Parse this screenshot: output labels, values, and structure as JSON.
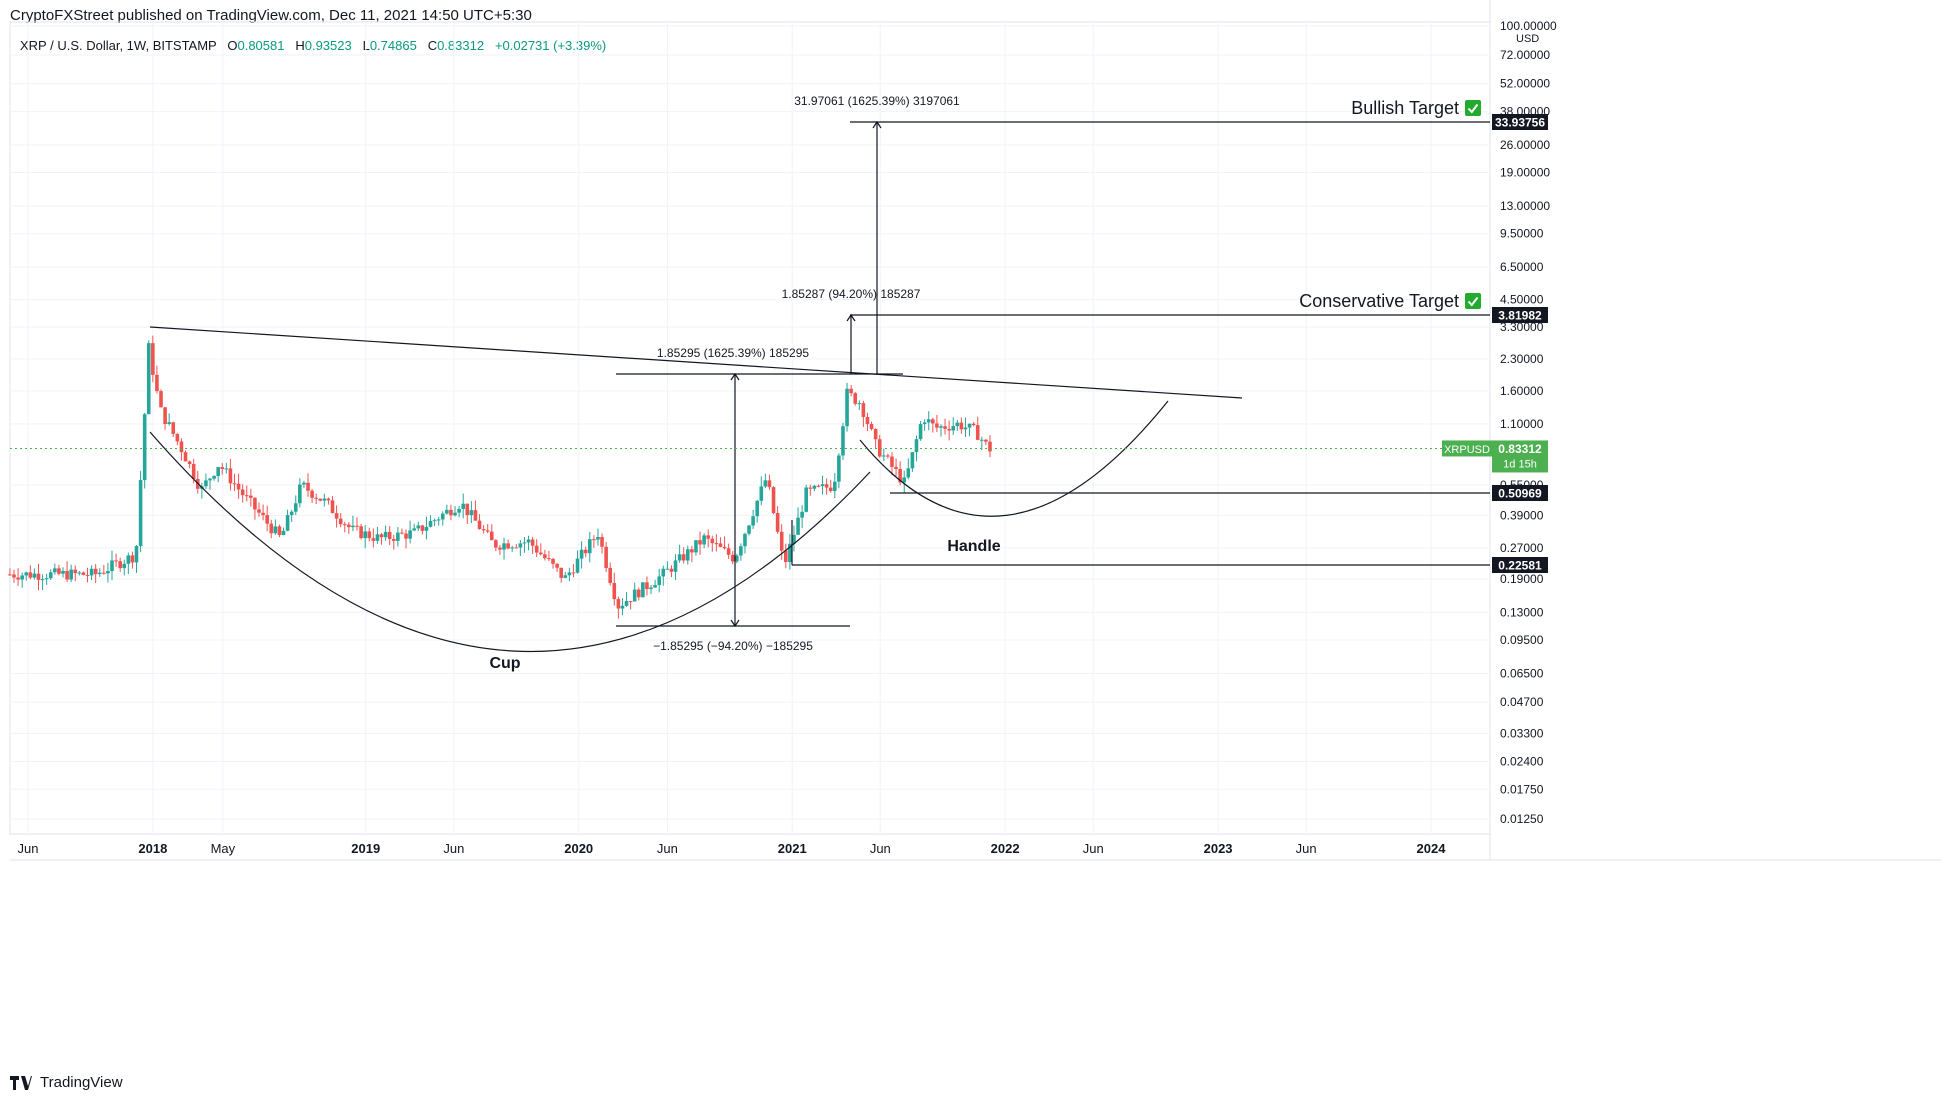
{
  "header": {
    "publisher": "CryptoFXStreet published on TradingView.com, Dec 11, 2021 14:50 UTC+5:30"
  },
  "legend": {
    "symbol": "XRP / U.S. Dollar, 1W, BITSTAMP",
    "ohlc": [
      {
        "k": "O",
        "v": "0.80581"
      },
      {
        "k": "H",
        "v": "0.93523"
      },
      {
        "k": "L",
        "v": "0.74865"
      },
      {
        "k": "C",
        "v": "0.83312"
      }
    ],
    "change": "+0.02731 (+3.39%)"
  },
  "footer": {
    "brand": "TradingView"
  },
  "colors": {
    "up": "#089981",
    "down": "#f23645",
    "up_candle": "#26a69a",
    "down_candle": "#ef5350",
    "line": "#131722",
    "price_tag": "#4caf50",
    "check": "#22ab2e"
  },
  "chart_data": {
    "type": "candlestick",
    "scale": "log",
    "currency": "USD",
    "y_axis_ticks": [
      "100.00000",
      "72.00000",
      "52.00000",
      "38.00000",
      "26.00000",
      "19.00000",
      "13.00000",
      "9.50000",
      "6.50000",
      "4.50000",
      "3.30000",
      "2.30000",
      "1.60000",
      "1.10000",
      "0.55000",
      "0.39000",
      "0.27000",
      "0.19000",
      "0.13000",
      "0.09500",
      "0.06500",
      "0.04700",
      "0.03300",
      "0.02400",
      "0.01750",
      "0.01250"
    ],
    "x_axis_ticks": [
      {
        "label": "Jun",
        "bold": false
      },
      {
        "label": "2018",
        "bold": true
      },
      {
        "label": "May",
        "bold": false
      },
      {
        "label": "2019",
        "bold": true
      },
      {
        "label": "Jun",
        "bold": false
      },
      {
        "label": "2020",
        "bold": true
      },
      {
        "label": "Jun",
        "bold": false
      },
      {
        "label": "2021",
        "bold": true
      },
      {
        "label": "Jun",
        "bold": false
      },
      {
        "label": "2022",
        "bold": true
      },
      {
        "label": "Jun",
        "bold": false
      },
      {
        "label": "2023",
        "bold": true
      },
      {
        "label": "Jun",
        "bold": false
      },
      {
        "label": "2024",
        "bold": true
      }
    ],
    "x_tick_dates": [
      "2017-06-01",
      "2018-01-01",
      "2018-05-01",
      "2019-01-01",
      "2019-06-01",
      "2020-01-01",
      "2020-06-01",
      "2021-01-01",
      "2021-06-01",
      "2022-01-01",
      "2022-06-01",
      "2023-01-01",
      "2023-06-01",
      "2024-01-01"
    ],
    "price_tags": [
      {
        "value": "33.93756",
        "price": 33.93756,
        "style": "dark"
      },
      {
        "value": "3.81982",
        "price": 3.81982,
        "style": "dark"
      },
      {
        "value": "0.50969",
        "price": 0.50969,
        "style": "dark"
      },
      {
        "value": "0.22581",
        "price": 0.22581,
        "style": "dark"
      }
    ],
    "current": {
      "symbol": "XRPUSD",
      "value": "0.83312",
      "countdown": "1d 15h",
      "price": 0.83312
    },
    "annotations": {
      "bullish_target": "Bullish Target",
      "conservative_target": "Conservative Target",
      "cup": "Cup",
      "handle": "Handle",
      "measure_top": "31.97061 (1625.39%) 3197061",
      "measure_mid": "1.85287 (94.20%) 185287",
      "measure_left": "1.85295 (1625.39%) 185295",
      "measure_bottom": "−1.85295 (−94.20%) −185295"
    },
    "anchors": [
      {
        "date": "2017-06-01",
        "price": 0.2
      },
      {
        "date": "2017-10-01",
        "price": 0.2
      },
      {
        "date": "2017-12-10",
        "price": 0.25
      },
      {
        "date": "2018-01-01",
        "price": 2.6
      },
      {
        "date": "2018-01-20",
        "price": 1.3
      },
      {
        "date": "2018-03-01",
        "price": 0.8
      },
      {
        "date": "2018-04-01",
        "price": 0.52
      },
      {
        "date": "2018-05-01",
        "price": 0.7
      },
      {
        "date": "2018-06-15",
        "price": 0.48
      },
      {
        "date": "2018-08-15",
        "price": 0.3
      },
      {
        "date": "2018-09-20",
        "price": 0.55
      },
      {
        "date": "2018-11-01",
        "price": 0.45
      },
      {
        "date": "2018-12-15",
        "price": 0.33
      },
      {
        "date": "2019-02-01",
        "price": 0.3
      },
      {
        "date": "2019-04-01",
        "price": 0.32
      },
      {
        "date": "2019-06-20",
        "price": 0.45
      },
      {
        "date": "2019-08-15",
        "price": 0.28
      },
      {
        "date": "2019-10-15",
        "price": 0.29
      },
      {
        "date": "2019-12-15",
        "price": 0.19
      },
      {
        "date": "2020-02-10",
        "price": 0.32
      },
      {
        "date": "2020-03-15",
        "price": 0.14
      },
      {
        "date": "2020-06-01",
        "price": 0.2
      },
      {
        "date": "2020-08-10",
        "price": 0.3
      },
      {
        "date": "2020-10-01",
        "price": 0.24
      },
      {
        "date": "2020-11-25",
        "price": 0.6
      },
      {
        "date": "2020-12-25",
        "price": 0.22
      },
      {
        "date": "2021-02-01",
        "price": 0.5
      },
      {
        "date": "2021-03-20",
        "price": 0.55
      },
      {
        "date": "2021-04-12",
        "price": 1.55
      },
      {
        "date": "2021-05-05",
        "price": 1.4
      },
      {
        "date": "2021-06-01",
        "price": 0.85
      },
      {
        "date": "2021-07-20",
        "price": 0.56
      },
      {
        "date": "2021-08-20",
        "price": 1.2
      },
      {
        "date": "2021-09-10",
        "price": 1.05
      },
      {
        "date": "2021-10-20",
        "price": 1.1
      },
      {
        "date": "2021-11-20",
        "price": 1.0
      },
      {
        "date": "2021-12-11",
        "price": 0.83
      }
    ]
  }
}
